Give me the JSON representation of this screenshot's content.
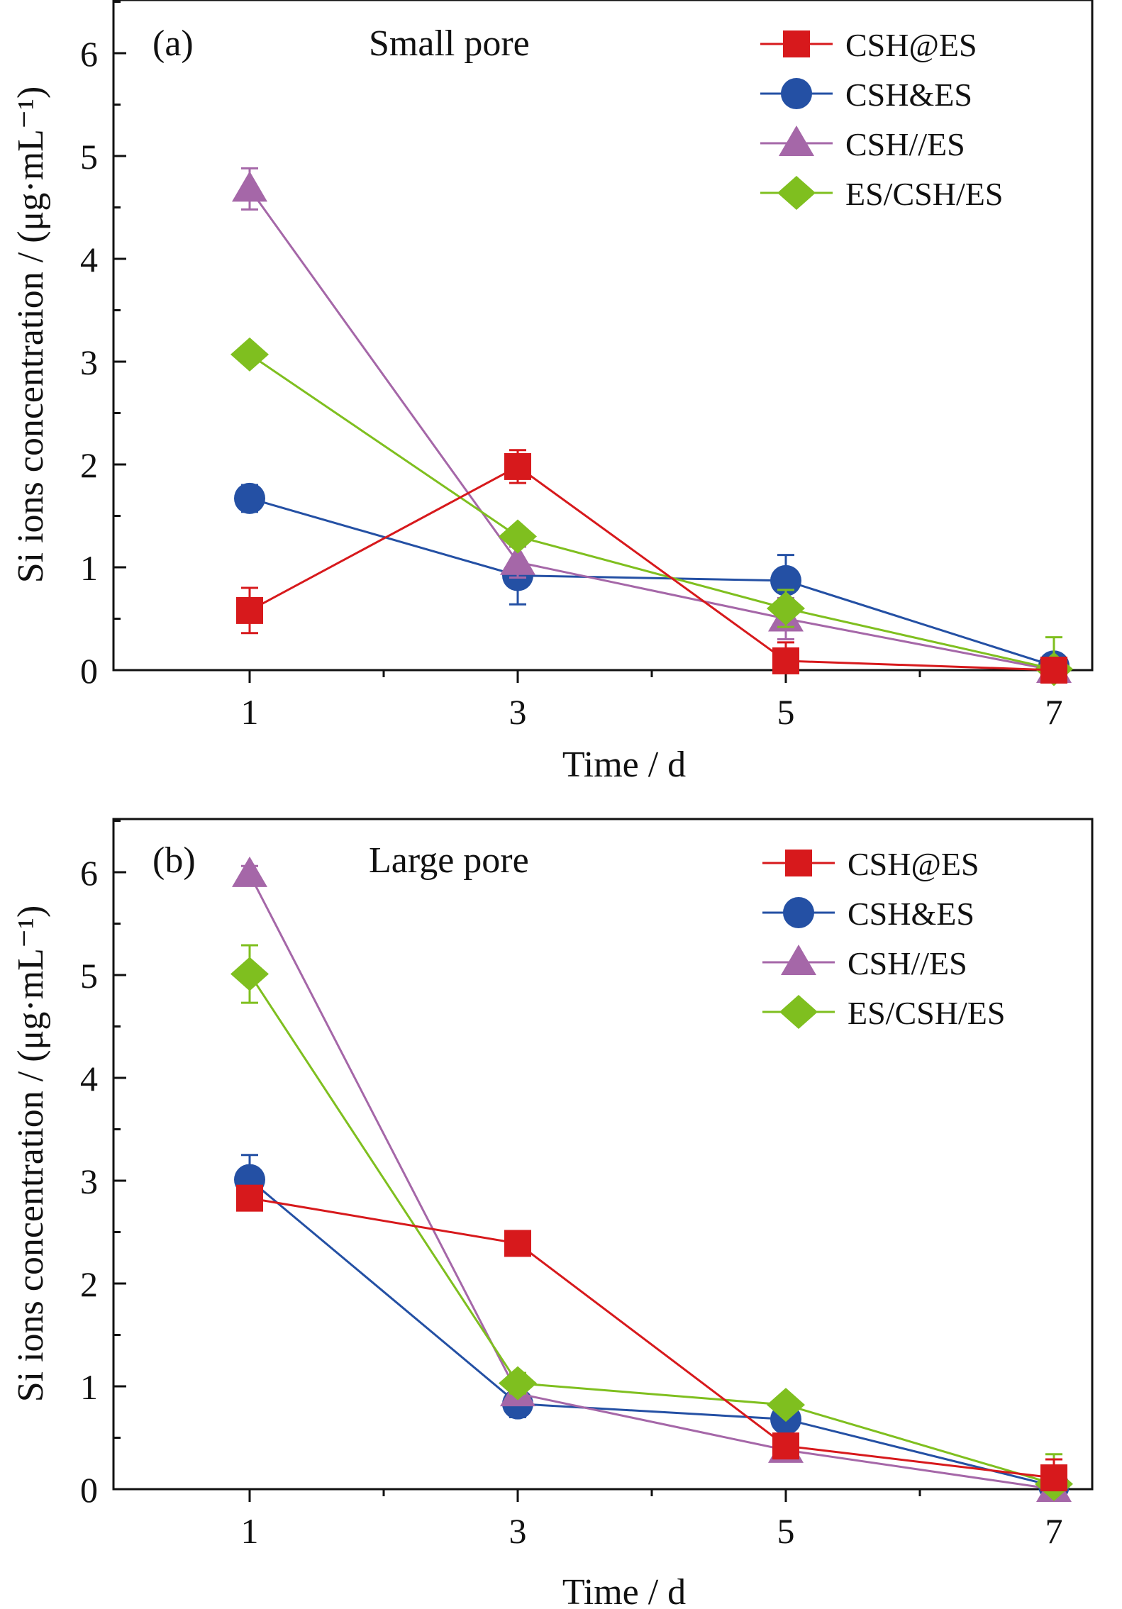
{
  "colors": {
    "CSH@ES": "#d7191c",
    "CSH&ES": "#2450a4",
    "CSH//ES": "#a567a8",
    "ES/CSH/ES": "#7fbf1f"
  },
  "chart_data": [
    {
      "type": "line",
      "panel_label": "(a)",
      "title": "Small pore",
      "xlabel": "Time / d",
      "ylabel": "Si ions concentration / (μg·mL⁻¹)",
      "x": [
        1,
        3,
        5,
        7
      ],
      "xticks": [
        "1",
        "3",
        "5",
        "7"
      ],
      "xlim": [
        0,
        7.5
      ],
      "yticks": [
        "0",
        "1",
        "2",
        "3",
        "4",
        "5",
        "6"
      ],
      "ylim": [
        0,
        6.5
      ],
      "legend_position": "top-right",
      "series": [
        {
          "name": "CSH@ES",
          "marker": "square",
          "values": [
            0.58,
            1.98,
            0.09,
            0.0
          ],
          "errors": [
            0.22,
            0.16,
            0.18,
            0.03
          ]
        },
        {
          "name": "CSH&ES",
          "marker": "circle",
          "values": [
            1.67,
            0.92,
            0.87,
            0.04
          ],
          "errors": [
            0.13,
            0.28,
            0.25,
            0.07
          ]
        },
        {
          "name": "CSH//ES",
          "marker": "triangle",
          "values": [
            4.68,
            1.05,
            0.5,
            -0.08
          ],
          "errors": [
            0.2,
            0.15,
            0.2,
            0.05
          ]
        },
        {
          "name": "ES/CSH/ES",
          "marker": "diamond",
          "values": [
            3.07,
            1.3,
            0.6,
            0.01
          ],
          "errors": [
            0.05,
            0.08,
            0.18,
            0.31
          ]
        }
      ]
    },
    {
      "type": "line",
      "panel_label": "(b)",
      "title": "Large pore",
      "xlabel": "Time / d",
      "ylabel": "Si ions concentration / (μg·mL⁻¹)",
      "x": [
        1,
        3,
        5,
        7
      ],
      "xticks": [
        "1",
        "3",
        "5",
        "7"
      ],
      "xlim": [
        0,
        7.5
      ],
      "yticks": [
        "0",
        "1",
        "2",
        "3",
        "4",
        "5",
        "6"
      ],
      "ylim": [
        0,
        6.5
      ],
      "legend_position": "top-right",
      "series": [
        {
          "name": "CSH@ES",
          "marker": "square",
          "values": [
            2.83,
            2.39,
            0.42,
            0.11
          ],
          "errors": [
            0.1,
            0.05,
            0.1,
            0.18
          ]
        },
        {
          "name": "CSH&ES",
          "marker": "circle",
          "values": [
            3.01,
            0.83,
            0.68,
            0.03
          ],
          "errors": [
            0.24,
            0.13,
            0.1,
            0.1
          ]
        },
        {
          "name": "CSH//ES",
          "marker": "triangle",
          "values": [
            5.98,
            0.93,
            0.38,
            0.0
          ],
          "errors": [
            0.08,
            0.1,
            0.08,
            0.08
          ]
        },
        {
          "name": "ES/CSH/ES",
          "marker": "diamond",
          "values": [
            5.01,
            1.03,
            0.82,
            0.05
          ],
          "errors": [
            0.28,
            0.1,
            0.05,
            0.29
          ]
        }
      ]
    }
  ]
}
